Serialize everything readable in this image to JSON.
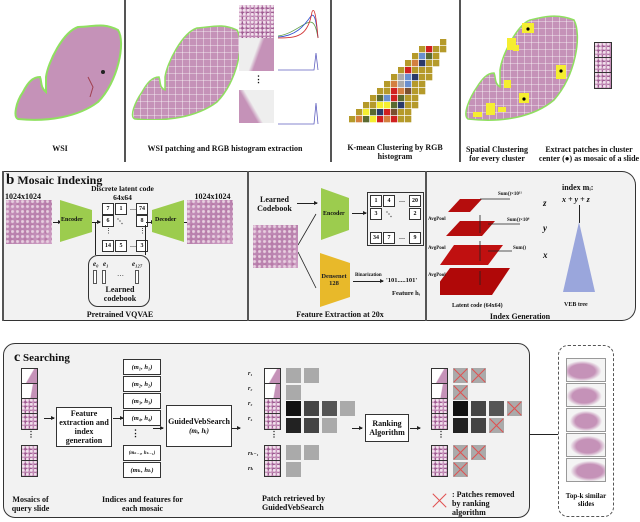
{
  "panel_a": {
    "steps": [
      {
        "label": "WSI"
      },
      {
        "label": "WSI patching and RGB histogram extraction"
      },
      {
        "label": "K-mean Clustering by RGB histogram"
      },
      {
        "label": "Spatial Clustering for every cluster"
      },
      {
        "label": "Extract patches in cluster center (●) as mosaic of a slide"
      }
    ],
    "ellipsis": "⋮"
  },
  "panel_b": {
    "letter": "b",
    "title": "Mosaic Indexing",
    "vqvae": {
      "input_size": "1024x1024",
      "output_size": "1024x1024",
      "latent_title": "Discrete latent code",
      "latent_size": "64x64",
      "encoder": "Encoder",
      "decoder": "Decoder",
      "latent_cells": [
        "7",
        "1",
        "…",
        "74",
        "6",
        "⋱",
        "8",
        "14",
        "5",
        "…",
        "3"
      ],
      "codebook_entries": [
        "e₀",
        "e₁",
        "…",
        "e₁₂₇"
      ],
      "codebook_label": "Learned codebook",
      "caption": "Pretrained VQVAE"
    },
    "feature": {
      "codebook_label": "Learned Codebook",
      "encoder": "Encoder",
      "densenet": "Densenet 128",
      "binarization": "Binarization",
      "binary_string": "'101.....101'",
      "feature_label": "Feature hᵢ",
      "code_cells": [
        "1",
        "4",
        "…",
        "20",
        "3",
        "⋱",
        "2",
        "34",
        "7",
        "…",
        "9"
      ],
      "caption": "Feature Extraction at 20x"
    },
    "index": {
      "pool_labels": [
        "AvgPool",
        "AvgPool",
        "AvgPool"
      ],
      "sum_labels": [
        "Sum()×10¹¹",
        "Sum()×10⁶",
        "Sum()"
      ],
      "vars": [
        "z",
        "y",
        "x"
      ],
      "latent_label": "Latent code (64x64)",
      "index_title": "index mᵢ:",
      "formula": "x + y + z",
      "tree_label": "VEB tree",
      "caption": "Index Generation"
    }
  },
  "panel_c": {
    "letter": "c",
    "title": "Searching",
    "query_label": "Mosaics of query slide",
    "feature_box": "Feature extraction and index generation",
    "index_items": [
      "(m₁, h₁)",
      "(m₂, h₂)",
      "(m₃, h₃)",
      "(m₄, h₄)",
      "⋮",
      "(mₖ₋₁, hₖ₋₁)",
      "(mₖ, hₖ)"
    ],
    "index_label": "Indices and features for each mosaic",
    "search_box": "GuidedVebSearch",
    "search_args": "(mᵢ, hᵢ)",
    "row_labels": [
      "r₁",
      "r₂",
      "r₃",
      "r₄",
      "rₖ₋₁",
      "rₖ"
    ],
    "retrieved_label": "Patch retrieved by GuidedVebSearch",
    "ranking_box": "Ranking Algorithm",
    "removed_legend": "Patches removed by ranking algorithm",
    "topk_label": "Top-k similar slides"
  },
  "colors": {
    "encoder_green": "#9ccc4e",
    "densenet_yellow": "#e8b92a",
    "latent_red": "#b50d0d",
    "veb_blue": "#9aa6dc",
    "outline_green": "#90e060",
    "removed_x": "#e05050"
  }
}
